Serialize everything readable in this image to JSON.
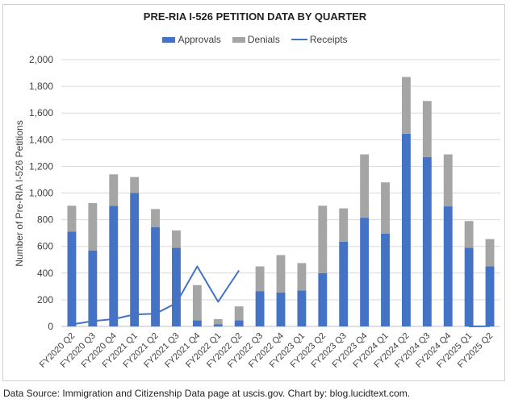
{
  "chart_data": {
    "type": "bar",
    "stacked": true,
    "title": "PRE-RIA I-526 PETITION DATA BY QUARTER",
    "xlabel": "",
    "ylabel": "Number of Pre-RIA I-526 Petitions",
    "ylim": [
      0,
      2000
    ],
    "yticks": [
      0,
      200,
      400,
      600,
      800,
      1000,
      1200,
      1400,
      1600,
      1800,
      2000
    ],
    "ytick_labels": [
      "0",
      "200",
      "400",
      "600",
      "800",
      "1,000",
      "1,200",
      "1,400",
      "1,600",
      "1,800",
      "2,000"
    ],
    "grid": true,
    "legend_position": "top",
    "categories": [
      "FY2020 Q2",
      "FY2020 Q3",
      "FY2020 Q4",
      "FY2021 Q1",
      "FY2021 Q2",
      "FY2021 Q3",
      "FY2021 Q4",
      "FY2022 Q1",
      "FY2022 Q2",
      "FY2022 Q3",
      "FY2022 Q4",
      "FY2023 Q1",
      "FY2023 Q2",
      "FY2023 Q3",
      "FY2023 Q4",
      "FY2024 Q1",
      "FY2024 Q2",
      "FY2024 Q3",
      "FY2024 Q4",
      "FY2025 Q1",
      "FY2025 Q2"
    ],
    "series": [
      {
        "name": "Approvals",
        "type": "bar",
        "color": "#4472c4",
        "values": [
          710,
          570,
          905,
          1000,
          745,
          590,
          45,
          15,
          45,
          265,
          255,
          270,
          400,
          635,
          815,
          695,
          1445,
          1270,
          900,
          590,
          450
        ]
      },
      {
        "name": "Denials",
        "type": "bar",
        "color": "#a5a5a5",
        "values": [
          195,
          355,
          235,
          120,
          135,
          130,
          265,
          40,
          105,
          185,
          280,
          205,
          505,
          250,
          475,
          385,
          425,
          420,
          390,
          200,
          205
        ]
      },
      {
        "name": "Receipts",
        "type": "line",
        "color": "#4472c4",
        "values": [
          15,
          40,
          55,
          90,
          95,
          175,
          450,
          185,
          420,
          null,
          null,
          null,
          null,
          null,
          null,
          null,
          null,
          null,
          null,
          0,
          2
        ]
      }
    ]
  },
  "footer": "Data Source: Immigration and Citizenship Data page at uscis.gov. Chart by: blog.lucidtext.com."
}
